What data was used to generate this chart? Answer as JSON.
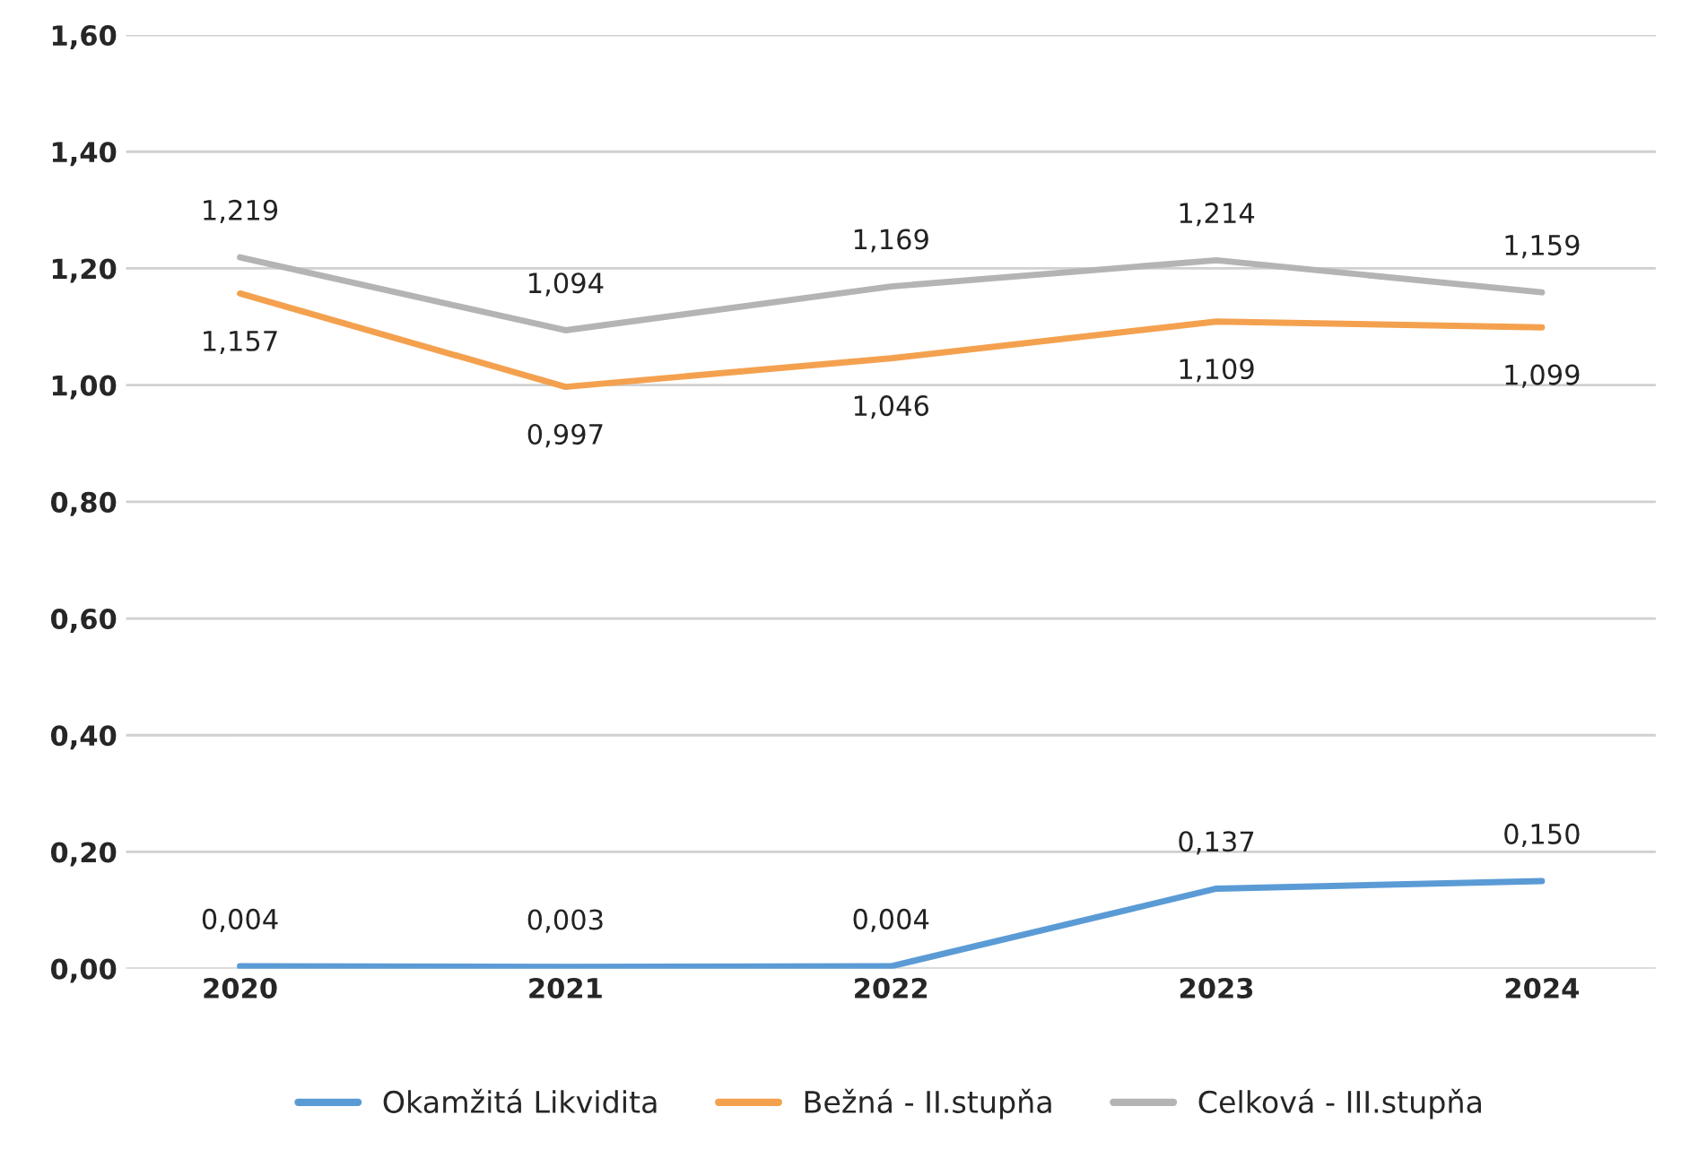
{
  "chart_data": {
    "type": "line",
    "categories": [
      "2020",
      "2021",
      "2022",
      "2023",
      "2024"
    ],
    "ylim": [
      0,
      1.6
    ],
    "yticks": [
      {
        "value": 0,
        "label": "0,00"
      },
      {
        "value": 0.2,
        "label": "0,20"
      },
      {
        "value": 0.4,
        "label": "0,40"
      },
      {
        "value": 0.6,
        "label": "0,60"
      },
      {
        "value": 0.8,
        "label": "0,80"
      },
      {
        "value": 1.0,
        "label": "1,00"
      },
      {
        "value": 1.2,
        "label": "1,20"
      },
      {
        "value": 1.4,
        "label": "1,40"
      },
      {
        "value": 1.6,
        "label": "1,60"
      }
    ],
    "grid": "y",
    "legend": "bottom",
    "marker": "none",
    "line_style": "solid",
    "series": [
      {
        "name": "Okamžitá Likvidita",
        "color": "#5b9bd5",
        "values": [
          0.004,
          0.003,
          0.004,
          0.137,
          0.15
        ],
        "value_labels": [
          "0,004",
          "0,003",
          "0,004",
          "0,137",
          "0,150"
        ]
      },
      {
        "name": "Bežná - II.stupňa",
        "color": "#f4a14f",
        "values": [
          1.157,
          0.997,
          1.046,
          1.109,
          1.099
        ],
        "value_labels": [
          "1,157",
          "0,997",
          "1,046",
          "1,109",
          "1,099"
        ]
      },
      {
        "name": "Celková - III.stupňa",
        "color": "#b4b4b4",
        "values": [
          1.219,
          1.094,
          1.169,
          1.214,
          1.159
        ],
        "value_labels": [
          "1,219",
          "1,094",
          "1,169",
          "1,214",
          "1,159"
        ]
      }
    ]
  }
}
